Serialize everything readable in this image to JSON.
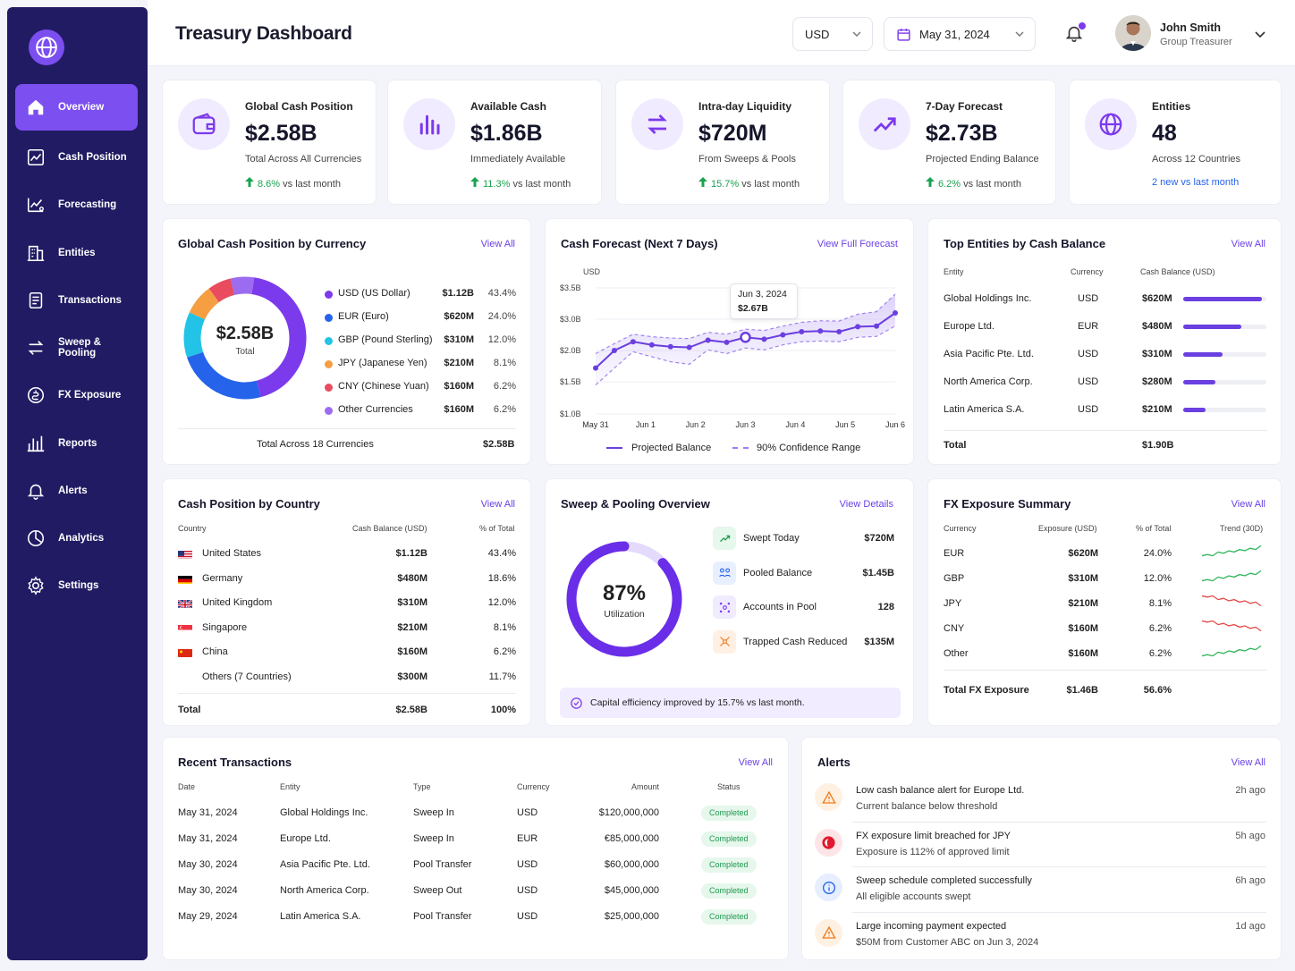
{
  "sidebar": {
    "items": [
      {
        "label": "Overview",
        "icon": "home-icon"
      },
      {
        "label": "Cash Position",
        "icon": "line-chart-icon"
      },
      {
        "label": "Forecasting",
        "icon": "forecast-icon"
      },
      {
        "label": "Entities",
        "icon": "building-icon"
      },
      {
        "label": "Transactions",
        "icon": "document-icon"
      },
      {
        "label": "Sweep & Pooling",
        "icon": "swap-icon"
      },
      {
        "label": "FX Exposure",
        "icon": "currency-icon"
      },
      {
        "label": "Reports",
        "icon": "bar-chart-icon"
      },
      {
        "label": "Alerts",
        "icon": "bell-icon"
      },
      {
        "label": "Analytics",
        "icon": "pie-chart-icon"
      },
      {
        "label": "Settings",
        "icon": "gear-icon"
      }
    ]
  },
  "header": {
    "title": "Treasury Dashboard",
    "currency": "USD",
    "date": "May 31, 2024",
    "user_name": "John Smith",
    "user_role": "Group Treasurer"
  },
  "kpis": [
    {
      "label": "Global Cash Position",
      "value": "$2.58B",
      "sub": "Total Across All Currencies",
      "pct": "8.6%",
      "suffix": "vs last month"
    },
    {
      "label": "Available Cash",
      "value": "$1.86B",
      "sub": "Immediately Available",
      "pct": "11.3%",
      "suffix": "vs last month"
    },
    {
      "label": "Intra-day Liquidity",
      "value": "$720M",
      "sub": "From Sweeps & Pools",
      "pct": "15.7%",
      "suffix": "vs last month"
    },
    {
      "label": "7-Day Forecast",
      "value": "$2.73B",
      "sub": "Projected Ending Balance",
      "pct": "6.2%",
      "suffix": "vs last month"
    },
    {
      "label": "Entities",
      "value": "48",
      "sub": "Across 12 Countries",
      "note": "2 new vs last month"
    }
  ],
  "currency_card": {
    "title": "Global Cash Position by Currency",
    "link": "View All",
    "center_value": "$2.58B",
    "center_label": "Total",
    "rows": [
      {
        "name": "USD (US Dollar)",
        "amount": "$1.12B",
        "pct": "43.4%",
        "color": "#7c3aed"
      },
      {
        "name": "EUR (Euro)",
        "amount": "$620M",
        "pct": "24.0%",
        "color": "#2563eb"
      },
      {
        "name": "GBP (Pound Sterling)",
        "amount": "$310M",
        "pct": "12.0%",
        "color": "#22c3e6"
      },
      {
        "name": "JPY (Japanese Yen)",
        "amount": "$210M",
        "pct": "8.1%",
        "color": "#f59e42"
      },
      {
        "name": "CNY (Chinese Yuan)",
        "amount": "$160M",
        "pct": "6.2%",
        "color": "#e94b5f"
      },
      {
        "name": "Other Currencies",
        "amount": "$160M",
        "pct": "6.2%",
        "color": "#9b6cf0"
      }
    ],
    "total_label": "Total Across 18 Currencies",
    "total_value": "$2.58B"
  },
  "forecast_card": {
    "title": "Cash Forecast (Next 7 Days)",
    "link": "View Full Forecast",
    "tooltip_date": "Jun 3, 2024",
    "tooltip_value": "$2.67B",
    "legend_projected": "Projected Balance",
    "legend_range": "90% Confidence Range"
  },
  "chart_data": {
    "type": "line",
    "ylabel": "USD",
    "ylim": [
      1.0,
      3.5
    ],
    "yticks": [
      "$3.5B",
      "$3.0B",
      "$2.0B",
      "$1.5B",
      "$1.0B"
    ],
    "xticks": [
      "May 31",
      "Jun 1",
      "Jun 2",
      "Jun 3",
      "Jun 4",
      "Jun 5",
      "Jun 6"
    ],
    "series": [
      {
        "name": "Projected Balance",
        "values": [
          1.72,
          2.0,
          2.28,
          2.18,
          2.12,
          2.1,
          2.33,
          2.26,
          2.42,
          2.36,
          2.5,
          2.6,
          2.62,
          2.6,
          2.76,
          2.78,
          3.1
        ]
      },
      {
        "name": "90% Confidence Range",
        "upper": [
          1.95,
          2.22,
          2.52,
          2.44,
          2.4,
          2.38,
          2.58,
          2.52,
          2.68,
          2.64,
          2.78,
          2.9,
          2.95,
          2.94,
          3.08,
          3.12,
          3.4
        ],
        "lower": [
          1.45,
          1.72,
          1.98,
          1.9,
          1.82,
          1.78,
          2.02,
          1.95,
          2.08,
          2.02,
          2.18,
          2.28,
          2.3,
          2.28,
          2.42,
          2.45,
          2.78
        ]
      }
    ],
    "highlight": {
      "label": "Jun 3, 2024",
      "value": 2.67
    }
  },
  "entities_card": {
    "title": "Top Entities by Cash Balance",
    "link": "View All",
    "headers": [
      "Entity",
      "Currency",
      "Cash Balance (USD)"
    ],
    "rows": [
      {
        "name": "Global Holdings Inc.",
        "cur": "USD",
        "bal": "$620M",
        "fill": 0.95
      },
      {
        "name": "Europe Ltd.",
        "cur": "EUR",
        "bal": "$480M",
        "fill": 0.7
      },
      {
        "name": "Asia Pacific Pte. Ltd.",
        "cur": "USD",
        "bal": "$310M",
        "fill": 0.47
      },
      {
        "name": "North America Corp.",
        "cur": "USD",
        "bal": "$280M",
        "fill": 0.39
      },
      {
        "name": "Latin America S.A.",
        "cur": "USD",
        "bal": "$210M",
        "fill": 0.27
      }
    ],
    "total_label": "Total",
    "total_value": "$1.90B"
  },
  "country_card": {
    "title": "Cash Position by Country",
    "link": "View All",
    "headers": [
      "Country",
      "Cash Balance (USD)",
      "% of Total"
    ],
    "rows": [
      {
        "name": "United States",
        "bal": "$1.12B",
        "pct": "43.4%",
        "flag": "us"
      },
      {
        "name": "Germany",
        "bal": "$480M",
        "pct": "18.6%",
        "flag": "de"
      },
      {
        "name": "United Kingdom",
        "bal": "$310M",
        "pct": "12.0%",
        "flag": "uk"
      },
      {
        "name": "Singapore",
        "bal": "$210M",
        "pct": "8.1%",
        "flag": "sg"
      },
      {
        "name": "China",
        "bal": "$160M",
        "pct": "6.2%",
        "flag": "cn"
      },
      {
        "name": "Others (7 Countries)",
        "bal": "$300M",
        "pct": "11.7%",
        "flag": ""
      }
    ],
    "total": {
      "label": "Total",
      "bal": "$2.58B",
      "pct": "100%"
    }
  },
  "sweep_card": {
    "title": "Sweep & Pooling Overview",
    "link": "View Details",
    "utilization_value": "87%",
    "utilization_label": "Utilization",
    "utilization": 0.87,
    "rows": [
      {
        "label": "Swept Today",
        "value": "$720M",
        "icon": "sweep-icon",
        "bg": "#e6f7ec",
        "fg": "#1e9a4e"
      },
      {
        "label": "Pooled Balance",
        "value": "$1.45B",
        "icon": "pool-icon",
        "bg": "#e8efff",
        "fg": "#2563eb"
      },
      {
        "label": "Accounts in Pool",
        "value": "128",
        "icon": "accounts-icon",
        "bg": "#f1ebff",
        "fg": "#7c3aed"
      },
      {
        "label": "Trapped Cash Reduced",
        "value": "$135M",
        "icon": "trapped-cash-icon",
        "bg": "#fff0e3",
        "fg": "#f07a1a"
      }
    ],
    "note": "Capital efficiency improved by 15.7% vs last month."
  },
  "fx_card": {
    "title": "FX Exposure Summary",
    "link": "View All",
    "headers": [
      "Currency",
      "Exposure (USD)",
      "% of Total",
      "Trend (30D)"
    ],
    "rows": [
      {
        "cur": "EUR",
        "exp": "$620M",
        "pct": "24.0%",
        "trend": "up"
      },
      {
        "cur": "GBP",
        "exp": "$310M",
        "pct": "12.0%",
        "trend": "up"
      },
      {
        "cur": "JPY",
        "exp": "$210M",
        "pct": "8.1%",
        "trend": "down"
      },
      {
        "cur": "CNY",
        "exp": "$160M",
        "pct": "6.2%",
        "trend": "down"
      },
      {
        "cur": "Other",
        "exp": "$160M",
        "pct": "6.2%",
        "trend": "up"
      }
    ],
    "total": {
      "label": "Total FX Exposure",
      "exp": "$1.46B",
      "pct": "56.6%"
    }
  },
  "transactions_card": {
    "title": "Recent Transactions",
    "link": "View All",
    "headers": [
      "Date",
      "Entity",
      "Type",
      "Currency",
      "Amount",
      "Status"
    ],
    "rows": [
      {
        "date": "May 31, 2024",
        "entity": "Global Holdings Inc.",
        "type": "Sweep In",
        "cur": "USD",
        "amount": "$120,000,000",
        "status": "Completed"
      },
      {
        "date": "May 31, 2024",
        "entity": "Europe Ltd.",
        "type": "Sweep In",
        "cur": "EUR",
        "amount": "€85,000,000",
        "status": "Completed"
      },
      {
        "date": "May 30, 2024",
        "entity": "Asia Pacific Pte. Ltd.",
        "type": "Pool Transfer",
        "cur": "USD",
        "amount": "$60,000,000",
        "status": "Completed"
      },
      {
        "date": "May 30, 2024",
        "entity": "North America Corp.",
        "type": "Sweep Out",
        "cur": "USD",
        "amount": "$45,000,000",
        "status": "Completed"
      },
      {
        "date": "May 29, 2024",
        "entity": "Latin America S.A.",
        "type": "Pool Transfer",
        "cur": "USD",
        "amount": "$25,000,000",
        "status": "Completed"
      }
    ]
  },
  "alerts_card": {
    "title": "Alerts",
    "link": "View All",
    "items": [
      {
        "title": "Low cash balance alert for Europe Ltd.",
        "desc": "Current balance below threshold",
        "time": "2h ago",
        "kind": "warning",
        "icon": "warning-icon"
      },
      {
        "title": "FX exposure limit breached for JPY",
        "desc": "Exposure is 112% of approved limit",
        "time": "5h ago",
        "kind": "error",
        "icon": "error-icon"
      },
      {
        "title": "Sweep schedule completed successfully",
        "desc": "All eligible accounts swept",
        "time": "6h ago",
        "kind": "info",
        "icon": "info-icon"
      },
      {
        "title": "Large incoming payment expected",
        "desc": "$50M from Customer ABC on Jun 3, 2024",
        "time": "1d ago",
        "kind": "warning",
        "icon": "warning-icon"
      }
    ]
  }
}
